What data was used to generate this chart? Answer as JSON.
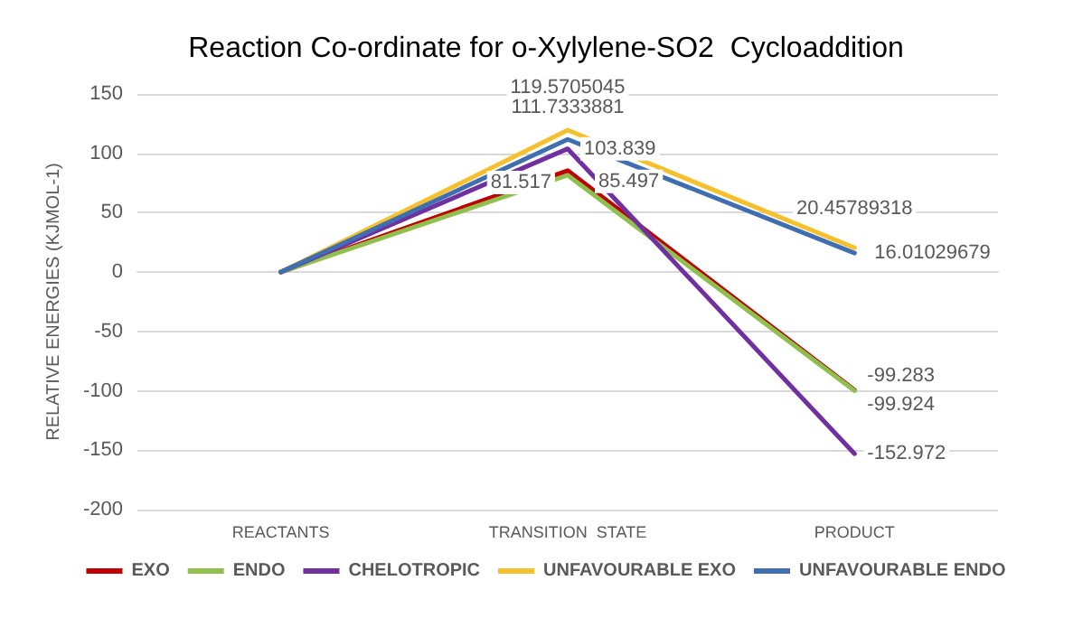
{
  "chart_data": {
    "type": "line",
    "title": "Reaction Co-ordinate for o-Xylylene-SO2  Cycloaddition",
    "ylabel": "RELATIVE ENERGIES (KJMOL-1)",
    "categories": [
      "REACTANTS",
      "TRANSITION  STATE",
      "PRODUCT"
    ],
    "series": [
      {
        "name": "EXO",
        "color": "#c00000",
        "values": [
          0,
          85.497,
          -99.283
        ],
        "value_labels": [
          null,
          "85.497",
          "-99.283"
        ]
      },
      {
        "name": "ENDO",
        "color": "#8fc04f",
        "values": [
          0,
          81.517,
          -99.924
        ],
        "value_labels": [
          null,
          "81.517",
          "-99.924"
        ]
      },
      {
        "name": "CHELOTROPIC",
        "color": "#7030a0",
        "values": [
          0,
          103.839,
          -152.972
        ],
        "value_labels": [
          null,
          "103.839",
          "-152.972"
        ]
      },
      {
        "name": "UNFAVOURABLE EXO",
        "color": "#f6c02d",
        "values": [
          0,
          119.5705045,
          20.45789318
        ],
        "value_labels": [
          null,
          "119.5705045",
          "20.45789318"
        ]
      },
      {
        "name": "UNFAVOURABLE ENDO",
        "color": "#3f6fb0",
        "values": [
          0,
          111.7333881,
          16.01029679
        ],
        "value_labels": [
          null,
          "111.7333881",
          "16.01029679"
        ]
      }
    ],
    "ylim": [
      -200,
      150
    ],
    "yticks": [
      -200,
      -150,
      -100,
      -50,
      0,
      50,
      100,
      150
    ],
    "grid": "y",
    "legend": "bottom",
    "marker": "none",
    "line_style": "solid"
  }
}
